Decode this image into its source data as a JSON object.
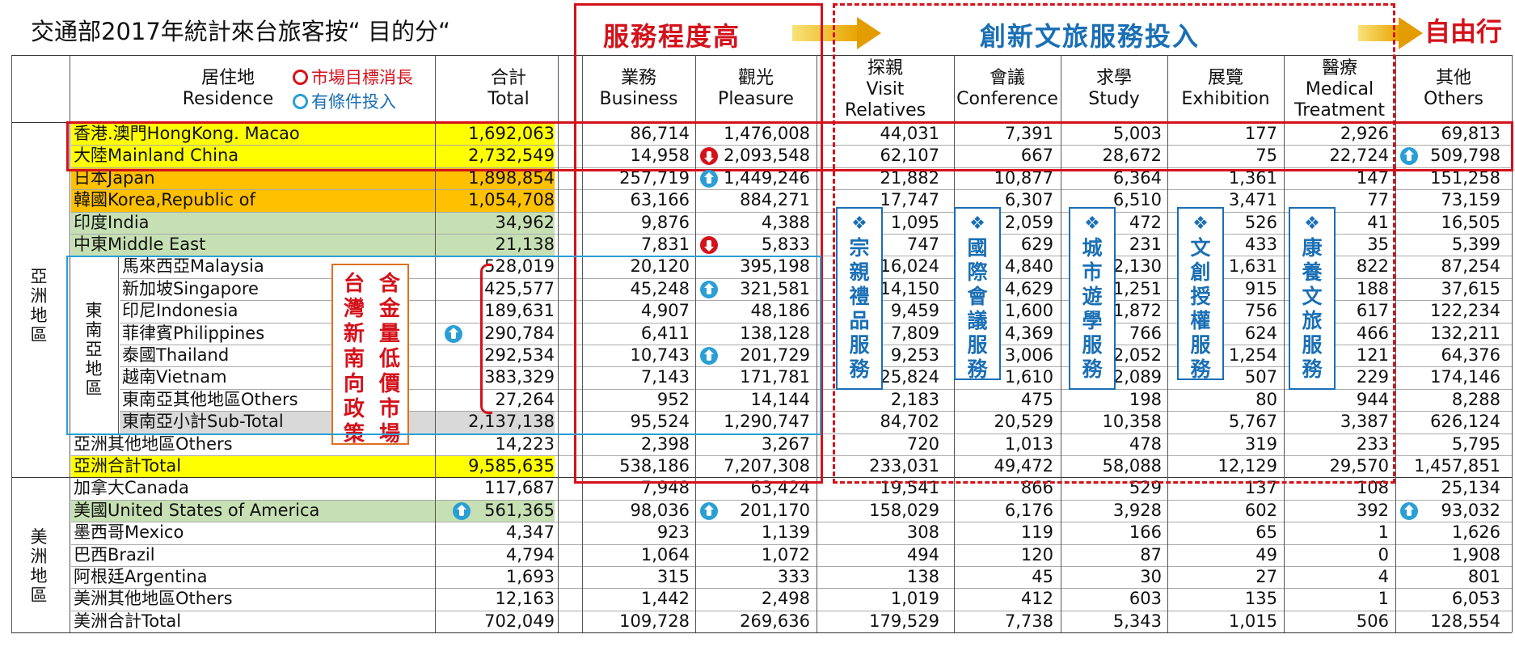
{
  "title": "交通部2017年統計來台旅客按“ 目的分“",
  "categories": {
    "high_service": "服務程度高",
    "cultural_investment": "創新文旅服務投入",
    "free_travel": "自由行"
  },
  "legend": {
    "market_change": "市場目標消長",
    "conditional_invest": "有條件投入",
    "market_change_color": "#d4121b",
    "conditional_invest_color": "#1a6fb5"
  },
  "headers": {
    "residence": [
      "居住地",
      "Residence"
    ],
    "total": [
      "合計",
      "Total"
    ],
    "business": [
      "業務",
      "Business"
    ],
    "pleasure": [
      "觀光",
      "Pleasure"
    ],
    "visit": [
      "探親",
      "Visit",
      "Relatives"
    ],
    "conference": [
      "會議",
      "Conference"
    ],
    "study": [
      "求學",
      "Study"
    ],
    "exhibition": [
      "展覽",
      "Exhibition"
    ],
    "medical": [
      "醫療",
      "Medical",
      "Treatment"
    ],
    "others": [
      "其他",
      "Others"
    ]
  },
  "regions": {
    "asia": "亞洲地區",
    "sea": "東南亞地區",
    "americas": "美洲地區"
  },
  "policy_note": [
    "含金量低價市場",
    "台灣新南向政策"
  ],
  "service_boxes": [
    "宗親禮品服務",
    "國際會議服務",
    "城市遊學服務",
    "文創授權服務",
    "康養文旅服務"
  ],
  "rows": [
    {
      "label": "香港.澳門HongKong. Macao",
      "values": [
        "1,692,063",
        "86,714",
        "1,476,008",
        "44,031",
        "7,391",
        "5,003",
        "177",
        "2,926",
        "69,813"
      ]
    },
    {
      "label": "大陸Mainland China",
      "values": [
        "2,732,549",
        "14,958",
        "2,093,548",
        "62,107",
        "667",
        "28,672",
        "75",
        "22,724",
        "509,798"
      ]
    },
    {
      "label": "日本Japan",
      "values": [
        "1,898,854",
        "257,719",
        "1,449,246",
        "21,882",
        "10,877",
        "6,364",
        "1,361",
        "147",
        "151,258"
      ]
    },
    {
      "label": "韓國Korea,Republic of",
      "values": [
        "1,054,708",
        "63,166",
        "884,271",
        "17,747",
        "6,307",
        "6,510",
        "3,471",
        "77",
        "73,159"
      ]
    },
    {
      "label": "印度India",
      "values": [
        "34,962",
        "9,876",
        "4,388",
        "1,095",
        "2,059",
        "472",
        "526",
        "41",
        "16,505"
      ]
    },
    {
      "label": "中東Middle East",
      "values": [
        "21,138",
        "7,831",
        "5,833",
        "747",
        "629",
        "231",
        "433",
        "35",
        "5,399"
      ]
    },
    {
      "label": "馬來西亞Malaysia",
      "values": [
        "528,019",
        "20,120",
        "395,198",
        "16,024",
        "4,840",
        "2,130",
        "1,631",
        "822",
        "87,254"
      ]
    },
    {
      "label": "新加坡Singapore",
      "values": [
        "425,577",
        "45,248",
        "321,581",
        "14,150",
        "4,629",
        "1,251",
        "915",
        "188",
        "37,615"
      ]
    },
    {
      "label": "印尼Indonesia",
      "values": [
        "189,631",
        "4,907",
        "48,186",
        "9,459",
        "1,600",
        "1,872",
        "756",
        "617",
        "122,234"
      ]
    },
    {
      "label": "菲律賓Philippines",
      "values": [
        "290,784",
        "6,411",
        "138,128",
        "7,809",
        "4,369",
        "766",
        "624",
        "466",
        "132,211"
      ]
    },
    {
      "label": "泰國Thailand",
      "values": [
        "292,534",
        "10,743",
        "201,729",
        "9,253",
        "3,006",
        "2,052",
        "1,254",
        "121",
        "64,376"
      ]
    },
    {
      "label": "越南Vietnam",
      "values": [
        "383,329",
        "7,143",
        "171,781",
        "25,824",
        "1,610",
        "2,089",
        "507",
        "229",
        "174,146"
      ]
    },
    {
      "label": "東南亞其他地區Others",
      "values": [
        "27,264",
        "952",
        "14,144",
        "2,183",
        "475",
        "198",
        "80",
        "944",
        "8,288"
      ]
    },
    {
      "label": "東南亞小計Sub-Total",
      "values": [
        "2,137,138",
        "95,524",
        "1,290,747",
        "84,702",
        "20,529",
        "10,358",
        "5,767",
        "3,387",
        "626,124"
      ]
    },
    {
      "label": "亞洲其他地區Others",
      "values": [
        "14,223",
        "2,398",
        "3,267",
        "720",
        "1,013",
        "478",
        "319",
        "233",
        "5,795"
      ]
    },
    {
      "label": "亞洲合計Total",
      "values": [
        "9,585,635",
        "538,186",
        "7,207,308",
        "233,031",
        "49,472",
        "58,088",
        "12,129",
        "29,570",
        "1,457,851"
      ]
    },
    {
      "label": "加拿大Canada",
      "values": [
        "117,687",
        "7,948",
        "63,424",
        "19,541",
        "866",
        "529",
        "137",
        "108",
        "25,134"
      ]
    },
    {
      "label": "美國United States of America",
      "values": [
        "561,365",
        "98,036",
        "201,170",
        "158,029",
        "6,176",
        "3,928",
        "602",
        "392",
        "93,032"
      ]
    },
    {
      "label": "墨西哥Mexico",
      "values": [
        "4,347",
        "923",
        "1,139",
        "308",
        "119",
        "166",
        "65",
        "1",
        "1,626"
      ]
    },
    {
      "label": "巴西Brazil",
      "values": [
        "4,794",
        "1,064",
        "1,072",
        "494",
        "120",
        "87",
        "49",
        "0",
        "1,908"
      ]
    },
    {
      "label": "阿根廷Argentina",
      "values": [
        "1,693",
        "315",
        "333",
        "138",
        "45",
        "30",
        "27",
        "4",
        "801"
      ]
    },
    {
      "label": "美洲其他地區Others",
      "values": [
        "12,163",
        "1,442",
        "2,498",
        "1,019",
        "412",
        "603",
        "135",
        "1",
        "6,053"
      ]
    },
    {
      "label": "美洲合計Total",
      "values": [
        "702,049",
        "109,728",
        "269,636",
        "179,529",
        "7,738",
        "5,343",
        "1,015",
        "506",
        "128,554"
      ]
    }
  ],
  "colors": {
    "yellow": "#ffff00",
    "orange": "#ffc000",
    "green": "#c6e0b4",
    "gray": "#d9d9d9"
  }
}
